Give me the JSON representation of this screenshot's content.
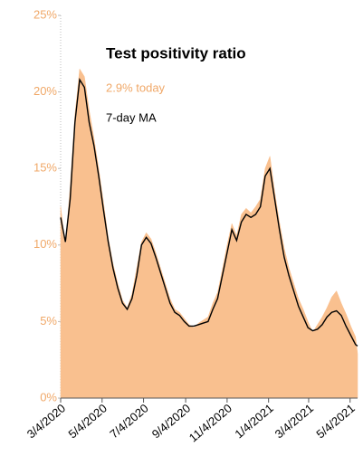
{
  "chart_data": {
    "type": "area_line",
    "title": "Test positivity ratio",
    "annotations": [
      "2.9% today"
    ],
    "x": [
      "2020-03-04",
      "2020-03-11",
      "2020-03-18",
      "2020-03-25",
      "2020-04-01",
      "2020-04-08",
      "2020-04-15",
      "2020-04-22",
      "2020-04-29",
      "2020-05-06",
      "2020-05-13",
      "2020-05-20",
      "2020-05-27",
      "2020-06-03",
      "2020-06-10",
      "2020-06-17",
      "2020-06-24",
      "2020-07-01",
      "2020-07-08",
      "2020-07-15",
      "2020-07-22",
      "2020-07-29",
      "2020-08-05",
      "2020-08-12",
      "2020-08-19",
      "2020-08-26",
      "2020-09-02",
      "2020-09-09",
      "2020-09-16",
      "2020-09-23",
      "2020-09-30",
      "2020-10-07",
      "2020-10-14",
      "2020-10-21",
      "2020-10-28",
      "2020-11-04",
      "2020-11-11",
      "2020-11-18",
      "2020-11-25",
      "2020-12-02",
      "2020-12-09",
      "2020-12-16",
      "2020-12-23",
      "2020-12-30",
      "2021-01-06",
      "2021-01-13",
      "2021-01-20",
      "2021-01-27",
      "2021-02-03",
      "2021-02-10",
      "2021-02-17",
      "2021-02-24",
      "2021-03-03",
      "2021-03-10",
      "2021-03-17",
      "2021-03-24",
      "2021-03-31",
      "2021-04-07",
      "2021-04-14",
      "2021-04-21",
      "2021-04-28",
      "2021-05-05",
      "2021-05-12",
      "2021-05-15"
    ],
    "series": [
      {
        "color": "#f9c08f",
        "values": [
          12.5,
          10.0,
          13.8,
          18.5,
          21.5,
          21.0,
          18.8,
          17.0,
          15.0,
          12.8,
          10.5,
          8.8,
          7.5,
          6.4,
          5.9,
          6.8,
          8.5,
          10.2,
          10.8,
          10.4,
          9.5,
          8.5,
          7.5,
          6.5,
          5.8,
          5.6,
          5.2,
          4.8,
          4.6,
          4.9,
          5.1,
          5.3,
          6.2,
          6.9,
          8.4,
          10.0,
          11.4,
          10.6,
          12.0,
          12.4,
          12.1,
          12.5,
          13.0,
          15.0,
          15.8,
          13.5,
          11.5,
          9.8,
          8.5,
          7.5,
          6.5,
          5.8,
          5.0,
          4.3,
          4.8,
          5.3,
          5.9,
          6.6,
          7.0,
          6.2,
          5.5,
          4.7,
          4.0,
          2.9
        ]
      },
      {
        "name": "7-day MA",
        "color": "#000000",
        "values": [
          11.8,
          10.2,
          13.0,
          18.0,
          20.8,
          20.3,
          18.0,
          16.5,
          14.5,
          12.3,
          10.2,
          8.5,
          7.2,
          6.2,
          5.8,
          6.5,
          8.0,
          10.0,
          10.5,
          10.1,
          9.2,
          8.2,
          7.2,
          6.2,
          5.6,
          5.4,
          5.0,
          4.7,
          4.7,
          4.8,
          4.9,
          5.0,
          5.8,
          6.5,
          8.0,
          9.5,
          11.0,
          10.3,
          11.5,
          12.0,
          11.8,
          12.0,
          12.5,
          14.5,
          15.0,
          13.0,
          11.0,
          9.2,
          8.0,
          7.0,
          6.0,
          5.3,
          4.6,
          4.4,
          4.5,
          4.8,
          5.3,
          5.6,
          5.7,
          5.4,
          4.7,
          4.1,
          3.5,
          3.4
        ]
      }
    ],
    "xlim": [
      "2020-03-04",
      "2021-05-15"
    ],
    "xticks": [
      {
        "value": "2020-03-04",
        "label": "3/4/2020"
      },
      {
        "value": "2020-05-04",
        "label": "5/4/2020"
      },
      {
        "value": "2020-07-04",
        "label": "7/4/2020"
      },
      {
        "value": "2020-09-04",
        "label": "9/4/2020"
      },
      {
        "value": "2020-11-04",
        "label": "11/4/2020"
      },
      {
        "value": "2021-01-04",
        "label": "1/4/2021"
      },
      {
        "value": "2021-03-04",
        "label": "3/4/2021"
      },
      {
        "value": "2021-05-04",
        "label": "5/4/2021"
      }
    ],
    "ylim": [
      0,
      25
    ],
    "yticks": [
      {
        "value": 0,
        "label": "0%"
      },
      {
        "value": 5,
        "label": "5%"
      },
      {
        "value": 10,
        "label": "10%"
      },
      {
        "value": 15,
        "label": "15%"
      },
      {
        "value": 20,
        "label": "20%"
      },
      {
        "value": 25,
        "label": "25%"
      }
    ],
    "grid": false
  }
}
